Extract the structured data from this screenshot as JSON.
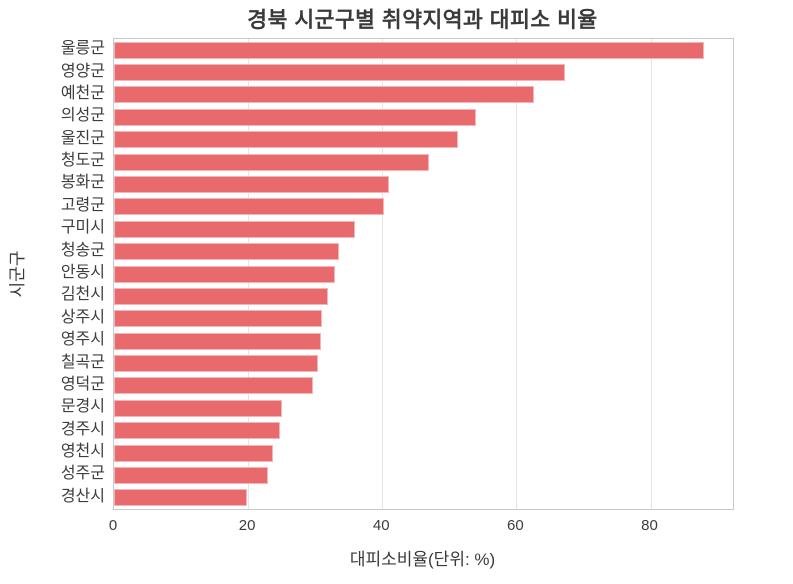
{
  "chart_data": {
    "type": "bar",
    "orientation": "horizontal",
    "title": "경북 시군구별 취약지역과 대피소 비율",
    "xlabel": "대피소비율(단위: %)",
    "ylabel": "시군구",
    "categories": [
      "울릉군",
      "영양군",
      "예천군",
      "의성군",
      "울진군",
      "청도군",
      "봉화군",
      "고령군",
      "구미시",
      "청송군",
      "안동시",
      "김천시",
      "상주시",
      "영주시",
      "칠곡군",
      "영덕군",
      "문경시",
      "경주시",
      "영천시",
      "성주군",
      "경산시"
    ],
    "values": [
      88.0,
      67.3,
      62.7,
      54.0,
      51.3,
      47.0,
      41.0,
      40.2,
      36.0,
      33.6,
      33.0,
      31.9,
      31.0,
      30.9,
      30.4,
      29.7,
      25.0,
      24.8,
      23.7,
      22.9,
      19.9
    ],
    "xticks": [
      0,
      20,
      40,
      60,
      80
    ],
    "xlim": [
      0,
      92.3
    ],
    "grid": true,
    "legend": "none",
    "bar_color": "#e96a6d",
    "bar_edge_color": "#f2b6b8",
    "grid_color": "#e4e4e4",
    "spine_color": "#c9c9c9",
    "text_color": "#3a3a3a",
    "background": "#ffffff"
  }
}
